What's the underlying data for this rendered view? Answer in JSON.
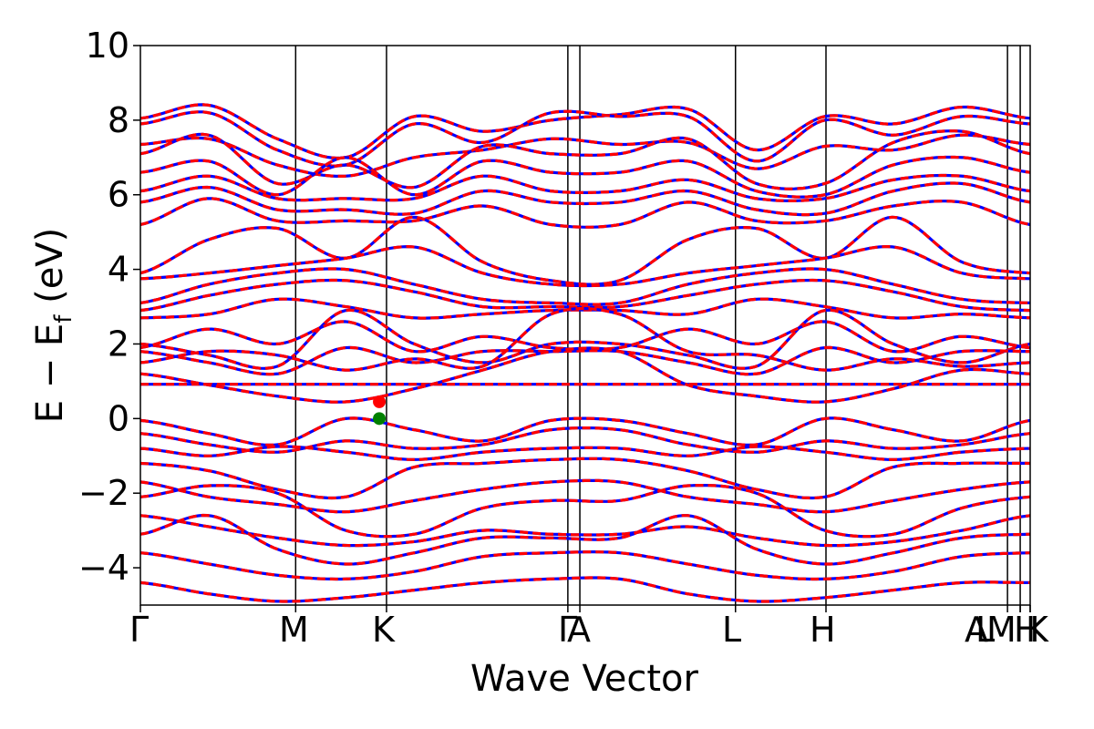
{
  "chart_data": {
    "type": "line",
    "xlabel": "Wave Vector",
    "ylabel": {
      "main": "E − E",
      "sub": "f",
      "unit": " (eV)"
    },
    "ylim": [
      -5,
      10
    ],
    "yticks": [
      -4,
      -2,
      0,
      2,
      4,
      6,
      8,
      10
    ],
    "ytick_labels": [
      "−4",
      "−2",
      "0",
      "2",
      "4",
      "6",
      "8",
      "10"
    ],
    "xlim": [
      0,
      1
    ],
    "kpoints": [
      {
        "label": "Γ",
        "x": 0.0
      },
      {
        "label": "M",
        "x": 0.1745
      },
      {
        "label": "K",
        "x": 0.2766
      },
      {
        "label": "Γ",
        "x": 0.4804
      },
      {
        "label": "A",
        "x": 0.4939
      },
      {
        "label": "L",
        "x": 0.6688
      },
      {
        "label": "H",
        "x": 0.7705
      },
      {
        "label": "A",
        "x": 0.9745
      },
      {
        "label": "L",
        "x": 0.9888
      },
      {
        "label": "M",
        "x": 0.9888
      },
      {
        "label": "H",
        "x": 1.0
      },
      {
        "label": "K",
        "x": 1.0
      }
    ],
    "kpoint_label_row": "Γ M K ΓA L H A|L M|H K",
    "grid": false,
    "legend": "none",
    "colors": {
      "spin_up": "#0000ff",
      "spin_down": "#ff0000",
      "vbm_marker": "#008000",
      "cbm_marker": "#ff0000",
      "kline": "#000000"
    },
    "markers": [
      {
        "name": "cbm",
        "x": 0.2685,
        "y": 0.45
      },
      {
        "name": "vbm",
        "x": 0.2685,
        "y": 0.0
      }
    ],
    "flat_band_y": 0.92,
    "series": [
      {
        "values": [
          8.05,
          8.4,
          7.5,
          7.0,
          8.1,
          7.7,
          8.0,
          8.15,
          8.3,
          7.2,
          8.1,
          7.9,
          8.35,
          8.05
        ]
      },
      {
        "values": [
          7.9,
          8.2,
          7.2,
          6.8,
          7.9,
          7.4,
          8.2,
          8.1,
          8.1,
          6.9,
          8.0,
          7.6,
          8.1,
          7.9
        ]
      },
      {
        "values": [
          7.35,
          7.5,
          6.8,
          6.5,
          7.0,
          7.2,
          7.5,
          7.35,
          7.4,
          6.7,
          7.3,
          7.2,
          7.6,
          7.35
        ]
      },
      {
        "values": [
          7.1,
          7.6,
          6.3,
          6.8,
          6.2,
          7.3,
          7.1,
          7.1,
          7.5,
          6.3,
          6.3,
          7.4,
          7.7,
          7.1
        ]
      },
      {
        "values": [
          6.6,
          6.9,
          6.0,
          7.0,
          6.0,
          6.9,
          6.6,
          6.6,
          6.9,
          6.1,
          6.0,
          6.8,
          7.0,
          6.6
        ]
      },
      {
        "values": [
          6.1,
          6.5,
          5.9,
          5.9,
          5.9,
          6.5,
          6.1,
          6.1,
          6.4,
          5.9,
          5.9,
          6.4,
          6.5,
          6.1
        ]
      },
      {
        "values": [
          5.8,
          6.2,
          5.6,
          5.6,
          5.5,
          6.1,
          5.8,
          5.8,
          6.1,
          5.6,
          5.5,
          6.1,
          6.3,
          5.8
        ]
      },
      {
        "values": [
          5.2,
          5.9,
          5.3,
          5.3,
          5.3,
          5.7,
          5.2,
          5.2,
          5.8,
          5.3,
          5.3,
          5.7,
          5.8,
          5.2
        ]
      },
      {
        "values": [
          3.9,
          4.8,
          5.1,
          4.3,
          5.4,
          4.2,
          3.7,
          3.7,
          4.8,
          5.1,
          4.3,
          5.4,
          4.2,
          3.9
        ]
      },
      {
        "values": [
          3.75,
          3.9,
          4.1,
          4.3,
          4.6,
          3.9,
          3.6,
          3.6,
          3.9,
          4.1,
          4.3,
          4.6,
          3.9,
          3.75
        ]
      },
      {
        "values": [
          3.1,
          3.6,
          3.9,
          4.0,
          3.6,
          3.2,
          3.1,
          3.1,
          3.6,
          3.9,
          4.0,
          3.6,
          3.2,
          3.1
        ]
      },
      {
        "values": [
          2.9,
          3.3,
          3.6,
          3.7,
          3.4,
          3.0,
          3.0,
          3.0,
          3.3,
          3.6,
          3.7,
          3.4,
          3.0,
          2.9
        ]
      },
      {
        "values": [
          2.7,
          2.8,
          3.2,
          3.0,
          2.7,
          2.8,
          2.9,
          2.9,
          2.8,
          3.2,
          3.0,
          2.7,
          2.8,
          2.7
        ]
      },
      {
        "values": [
          2.0,
          1.7,
          1.4,
          2.9,
          2.0,
          1.5,
          2.0,
          2.0,
          1.7,
          1.4,
          2.9,
          2.0,
          1.5,
          2.0
        ]
      },
      {
        "values": [
          1.9,
          2.4,
          2.0,
          2.6,
          1.8,
          2.2,
          1.9,
          1.9,
          2.4,
          2.0,
          2.6,
          1.8,
          2.2,
          1.9
        ]
      },
      {
        "values": [
          1.8,
          1.5,
          1.2,
          1.9,
          1.5,
          1.8,
          1.8,
          1.8,
          1.5,
          1.2,
          1.9,
          1.5,
          1.8,
          1.8
        ]
      },
      {
        "values": [
          1.5,
          1.8,
          1.7,
          1.3,
          1.6,
          1.4,
          2.8,
          2.8,
          1.8,
          1.7,
          1.3,
          1.6,
          1.4,
          1.5
        ]
      },
      {
        "values": [
          0.92,
          0.92,
          0.92,
          0.92,
          0.92,
          0.92,
          0.92,
          0.92,
          0.92,
          0.92,
          0.92,
          0.92,
          0.92,
          0.92
        ]
      },
      {
        "values": [
          1.2,
          0.9,
          0.6,
          0.45,
          0.8,
          1.3,
          1.8,
          1.8,
          0.9,
          0.6,
          0.45,
          0.8,
          1.3,
          1.2
        ]
      },
      {
        "values": [
          -0.05,
          -0.4,
          -0.7,
          0.0,
          -0.3,
          -0.6,
          -0.05,
          -0.05,
          -0.4,
          -0.7,
          0.0,
          -0.3,
          -0.6,
          -0.05
        ]
      },
      {
        "values": [
          -0.4,
          -0.7,
          -0.9,
          -0.6,
          -0.8,
          -0.7,
          -0.3,
          -0.3,
          -0.7,
          -0.9,
          -0.6,
          -0.8,
          -0.7,
          -0.4
        ]
      },
      {
        "values": [
          -0.8,
          -1.0,
          -0.75,
          -0.9,
          -1.1,
          -0.9,
          -0.8,
          -0.8,
          -1.0,
          -0.75,
          -0.9,
          -1.1,
          -0.9,
          -0.8
        ]
      },
      {
        "values": [
          -1.2,
          -1.4,
          -1.9,
          -2.1,
          -1.3,
          -1.2,
          -1.1,
          -1.1,
          -1.4,
          -1.9,
          -2.1,
          -1.3,
          -1.2,
          -1.2
        ]
      },
      {
        "values": [
          -1.7,
          -2.1,
          -2.3,
          -2.5,
          -2.2,
          -1.9,
          -1.7,
          -1.7,
          -2.1,
          -2.3,
          -2.5,
          -2.2,
          -1.9,
          -1.7
        ]
      },
      {
        "values": [
          -2.1,
          -1.8,
          -2.0,
          -3.0,
          -3.1,
          -2.4,
          -2.2,
          -2.2,
          -1.8,
          -2.0,
          -3.0,
          -3.1,
          -2.4,
          -2.1
        ]
      },
      {
        "values": [
          -2.6,
          -2.9,
          -3.2,
          -3.4,
          -3.3,
          -3.0,
          -3.1,
          -3.1,
          -2.9,
          -3.2,
          -3.4,
          -3.3,
          -3.0,
          -2.6
        ]
      },
      {
        "values": [
          -3.1,
          -2.6,
          -3.5,
          -3.9,
          -3.6,
          -3.2,
          -3.2,
          -3.2,
          -2.6,
          -3.5,
          -3.9,
          -3.6,
          -3.2,
          -3.1
        ]
      },
      {
        "values": [
          -3.6,
          -3.9,
          -4.2,
          -4.3,
          -4.1,
          -3.7,
          -3.6,
          -3.6,
          -3.9,
          -4.2,
          -4.3,
          -4.1,
          -3.7,
          -3.6
        ]
      },
      {
        "values": [
          -4.4,
          -4.7,
          -4.9,
          -4.8,
          -4.6,
          -4.4,
          -4.3,
          -4.3,
          -4.7,
          -4.9,
          -4.8,
          -4.6,
          -4.4,
          -4.4
        ]
      }
    ]
  }
}
